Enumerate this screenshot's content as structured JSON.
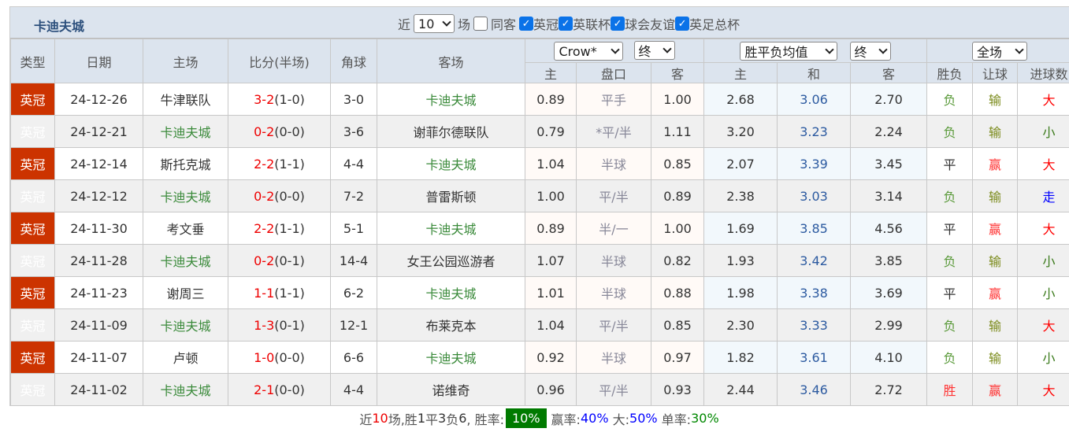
{
  "team": "卡迪夫城",
  "filters": {
    "near": "近",
    "count": "10",
    "unit": "场",
    "same": "同客",
    "leagues": [
      "英冠",
      "英联杯",
      "球会友谊",
      "英足总杯"
    ]
  },
  "headers": {
    "type": "类型",
    "date": "日期",
    "home": "主场",
    "score": "比分(半场)",
    "corner": "角球",
    "away": "客场",
    "company": "Crow*",
    "final1": "终",
    "odds_type": "胜平负均值",
    "final2": "终",
    "period": "全场",
    "sub": [
      "主",
      "盘口",
      "客",
      "主",
      "和",
      "客",
      "胜负",
      "让球",
      "进球数"
    ]
  },
  "rows": [
    {
      "type": "英冠",
      "date": "24-12-26",
      "home": "牛津联队",
      "ft": "3-2",
      "ht": "(1-0)",
      "corner": "3-0",
      "away": "卡迪夫城",
      "h": "0.89",
      "line": "平手",
      "a": "1.00",
      "w": "2.68",
      "d": "3.06",
      "l": "2.70",
      "res": "负",
      "hc": "输",
      "ou": "大"
    },
    {
      "type": "英冠",
      "date": "24-12-21",
      "home": "卡迪夫城",
      "ft": "0-2",
      "ht": "(0-0)",
      "corner": "3-6",
      "away": "谢菲尔德联队",
      "h": "0.79",
      "line": "*平/半",
      "a": "1.11",
      "w": "3.20",
      "d": "3.23",
      "l": "2.24",
      "res": "负",
      "hc": "输",
      "ou": "小"
    },
    {
      "type": "英冠",
      "date": "24-12-14",
      "home": "斯托克城",
      "ft": "2-2",
      "ht": "(1-1)",
      "corner": "4-4",
      "away": "卡迪夫城",
      "h": "1.04",
      "line": "半球",
      "a": "0.85",
      "w": "2.07",
      "d": "3.39",
      "l": "3.45",
      "res": "平",
      "hc": "赢",
      "ou": "大"
    },
    {
      "type": "英冠",
      "date": "24-12-12",
      "home": "卡迪夫城",
      "ft": "0-2",
      "ht": "(0-0)",
      "corner": "7-2",
      "away": "普雷斯顿",
      "h": "1.00",
      "line": "平/半",
      "a": "0.89",
      "w": "2.38",
      "d": "3.03",
      "l": "3.14",
      "res": "负",
      "hc": "输",
      "ou": "走"
    },
    {
      "type": "英冠",
      "date": "24-11-30",
      "home": "考文垂",
      "ft": "2-2",
      "ht": "(1-1)",
      "corner": "5-1",
      "away": "卡迪夫城",
      "h": "0.89",
      "line": "半/一",
      "a": "1.00",
      "w": "1.69",
      "d": "3.85",
      "l": "4.56",
      "res": "平",
      "hc": "赢",
      "ou": "大"
    },
    {
      "type": "英冠",
      "date": "24-11-28",
      "home": "卡迪夫城",
      "ft": "0-2",
      "ht": "(0-1)",
      "corner": "14-4",
      "away": "女王公园巡游者",
      "h": "1.07",
      "line": "半球",
      "a": "0.82",
      "w": "1.93",
      "d": "3.42",
      "l": "3.85",
      "res": "负",
      "hc": "输",
      "ou": "小"
    },
    {
      "type": "英冠",
      "date": "24-11-23",
      "home": "谢周三",
      "ft": "1-1",
      "ht": "(1-1)",
      "corner": "6-2",
      "away": "卡迪夫城",
      "h": "1.01",
      "line": "半球",
      "a": "0.88",
      "w": "1.98",
      "d": "3.38",
      "l": "3.69",
      "res": "平",
      "hc": "赢",
      "ou": "小"
    },
    {
      "type": "英冠",
      "date": "24-11-09",
      "home": "卡迪夫城",
      "ft": "1-3",
      "ht": "(0-1)",
      "corner": "12-1",
      "away": "布莱克本",
      "h": "1.04",
      "line": "平/半",
      "a": "0.85",
      "w": "2.30",
      "d": "3.33",
      "l": "2.99",
      "res": "负",
      "hc": "输",
      "ou": "大"
    },
    {
      "type": "英冠",
      "date": "24-11-07",
      "home": "卢顿",
      "ft": "1-0",
      "ht": "(0-0)",
      "corner": "6-6",
      "away": "卡迪夫城",
      "h": "0.92",
      "line": "半球",
      "a": "0.97",
      "w": "1.82",
      "d": "3.61",
      "l": "4.10",
      "res": "负",
      "hc": "输",
      "ou": "小"
    },
    {
      "type": "英冠",
      "date": "24-11-02",
      "home": "卡迪夫城",
      "ft": "2-1",
      "ht": "(0-0)",
      "corner": "4-4",
      "away": "诺维奇",
      "h": "0.96",
      "line": "平/半",
      "a": "0.93",
      "w": "2.44",
      "d": "3.46",
      "l": "2.72",
      "res": "胜",
      "hc": "赢",
      "ou": "大"
    }
  ],
  "footer": {
    "p1": "近",
    "n": "10",
    "p2": "场,胜",
    "win": "1",
    "p3": "平",
    "draw": "3",
    "p4": "负",
    "loss": "6",
    "p5": ", 胜率:",
    "win_rate": "10%",
    "p6": "赢率:",
    "hc_rate": "40%",
    "p7": "大:",
    "over_rate": "50%",
    "p8": "单率:",
    "odd_rate": "30%"
  },
  "colors": {
    "type_bg": "#cc3300",
    "win_rate_bg": "#007a00",
    "team": "#3a8a3a",
    "loss": "#e00"
  }
}
